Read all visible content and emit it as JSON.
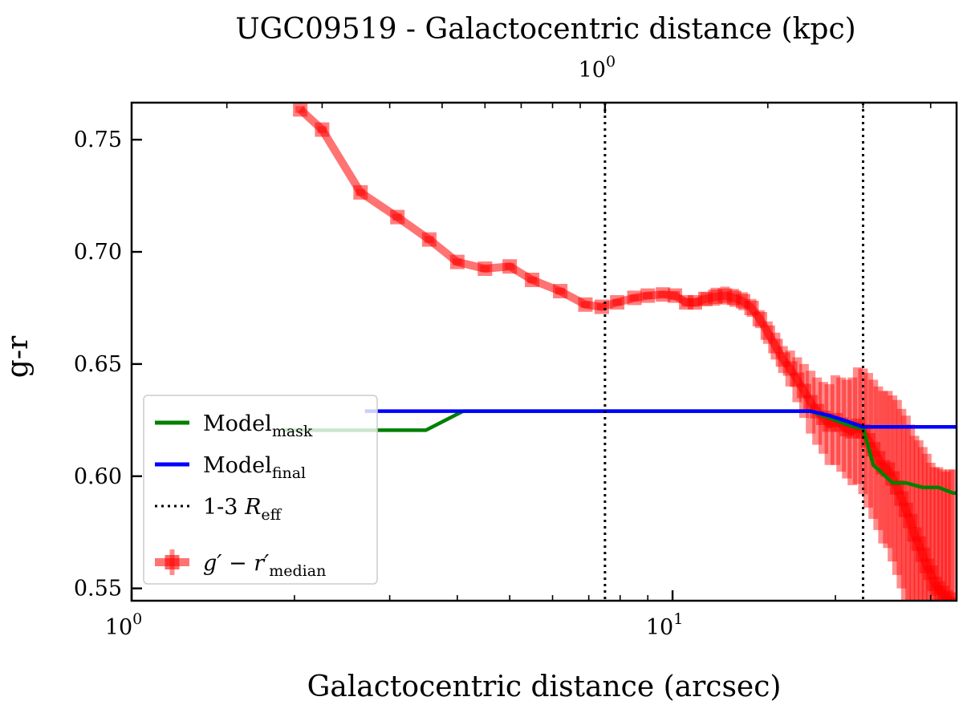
{
  "chart_data": {
    "type": "line",
    "title": "UGC09519 - Galactocentric distance (kpc)",
    "xlabel": "Galactocentric distance (arcsec)",
    "ylabel": "g-r",
    "x_scale": "log",
    "xlim": [
      1.0,
      33.5
    ],
    "ylim": [
      0.5445,
      0.7665
    ],
    "bottom_x_ticks": [
      {
        "value": 1,
        "base": "10",
        "exp": "0"
      },
      {
        "value": 10,
        "base": "10",
        "exp": "1"
      }
    ],
    "top_x_ticks": [
      {
        "value": 7.5,
        "base": "10",
        "exp": "0"
      }
    ],
    "top_axis_scale_arcsec_per_kpc": 7.5,
    "y_ticks": [
      "0.55",
      "0.60",
      "0.65",
      "0.70",
      "0.75"
    ],
    "grid": false,
    "legend_position": "lower-left",
    "vertical_lines": [
      {
        "x": 7.5,
        "style": "dotted"
      },
      {
        "x": 22.5,
        "style": "dotted"
      }
    ],
    "legend": [
      {
        "key": "model_mask",
        "main": "Model",
        "sub": "mask"
      },
      {
        "key": "model_final",
        "main": "Model",
        "sub": "final"
      },
      {
        "key": "reff",
        "main": "1-3 R",
        "sub": "eff"
      },
      {
        "key": "median",
        "main": "g′ − r′",
        "sub": "median"
      }
    ],
    "series": [
      {
        "key": "median",
        "color": "#ff0000",
        "x": [
          2.05,
          2.25,
          2.65,
          3.1,
          3.55,
          4.0,
          4.5,
          5.0,
          5.5,
          6.2,
          6.9,
          7.4,
          7.9,
          8.5,
          9.0,
          9.6,
          10.1,
          10.6,
          11.0,
          11.5,
          12.0,
          12.5,
          13.0,
          13.5,
          14.0,
          14.5,
          15.0,
          15.5,
          16.0,
          16.5,
          17.0,
          17.5,
          18.0,
          18.5,
          19.0,
          19.5,
          20.0,
          20.5,
          21.0,
          21.5,
          22.0,
          22.5,
          23.0,
          23.5,
          24.0,
          24.5,
          25.0,
          25.5,
          26.0,
          26.5,
          27.0,
          27.5,
          28.0,
          28.5,
          29.0,
          29.5,
          30.0,
          30.5,
          31.0,
          31.5,
          32.0,
          32.5,
          33.0
        ],
        "y": [
          0.7635,
          0.7545,
          0.7265,
          0.7155,
          0.7055,
          0.6955,
          0.6925,
          0.6935,
          0.6875,
          0.6825,
          0.6765,
          0.6755,
          0.6775,
          0.6795,
          0.6805,
          0.681,
          0.6805,
          0.6775,
          0.6775,
          0.679,
          0.68,
          0.6805,
          0.6795,
          0.678,
          0.675,
          0.67,
          0.664,
          0.658,
          0.652,
          0.648,
          0.643,
          0.638,
          0.633,
          0.629,
          0.626,
          0.623,
          0.625,
          0.623,
          0.621,
          0.62,
          0.6225,
          0.62,
          0.616,
          0.612,
          0.608,
          0.604,
          0.603,
          0.599,
          0.595,
          0.59,
          0.585,
          0.58,
          0.574,
          0.57,
          0.565,
          0.56,
          0.557,
          0.552,
          0.55,
          0.548,
          0.546,
          0.545,
          0.543
        ],
        "err": [
          0.0015,
          0.0015,
          0.0015,
          0.0015,
          0.0015,
          0.0015,
          0.0015,
          0.0015,
          0.0015,
          0.0015,
          0.0015,
          0.0015,
          0.0015,
          0.0015,
          0.0015,
          0.0015,
          0.002,
          0.002,
          0.002,
          0.003,
          0.004,
          0.004,
          0.004,
          0.004,
          0.004,
          0.004,
          0.005,
          0.006,
          0.006,
          0.008,
          0.01,
          0.012,
          0.014,
          0.015,
          0.016,
          0.018,
          0.02,
          0.021,
          0.022,
          0.024,
          0.026,
          0.028,
          0.03,
          0.031,
          0.032,
          0.034,
          0.035,
          0.037,
          0.039,
          0.04,
          0.042,
          0.043,
          0.044,
          0.046,
          0.048,
          0.05,
          0.049,
          0.052,
          0.054,
          0.055,
          0.056,
          0.058,
          0.06
        ]
      },
      {
        "key": "model_mask",
        "color": "#008000",
        "x": [
          1.9,
          3.5,
          4.1,
          10.0,
          18.0,
          19.0,
          20.0,
          21.0,
          22.0,
          22.5,
          23.5,
          24.5,
          25.5,
          27.0,
          29.0,
          31.0,
          33.0,
          33.5
        ],
        "y": [
          0.6205,
          0.6205,
          0.629,
          0.629,
          0.629,
          0.627,
          0.625,
          0.623,
          0.6215,
          0.6215,
          0.605,
          0.601,
          0.597,
          0.597,
          0.595,
          0.595,
          0.5925,
          0.5925
        ]
      },
      {
        "key": "model_final",
        "color": "#0000ff",
        "x": [
          2.7,
          10.0,
          18.0,
          19.5,
          21.0,
          22.5,
          23.0,
          33.5
        ],
        "y": [
          0.629,
          0.629,
          0.629,
          0.627,
          0.6245,
          0.622,
          0.622,
          0.622
        ]
      }
    ]
  }
}
